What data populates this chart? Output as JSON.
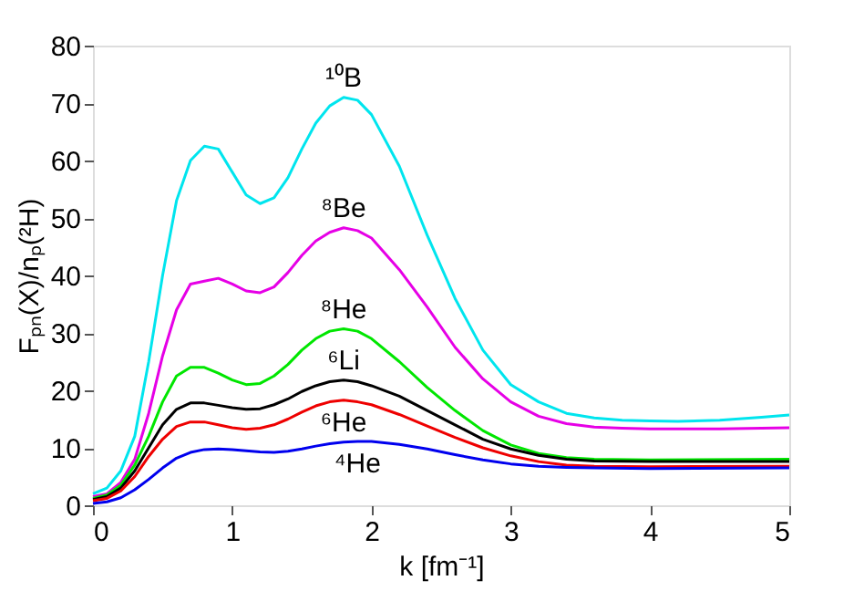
{
  "chart_data": {
    "type": "line",
    "xlabel": "k [fm⁻¹]",
    "ylabel": "Fₚₙ(X)/nₚ(²H)",
    "xlim": [
      0,
      5
    ],
    "xticks": [
      0,
      1,
      2,
      3,
      4,
      5
    ],
    "ylim": [
      0,
      80
    ],
    "yticks": [
      0,
      10,
      20,
      30,
      40,
      50,
      60,
      70,
      80
    ],
    "grid": false,
    "legend": false,
    "marker": "none",
    "line_style": "solid",
    "series": [
      {
        "color": "#00e5ee",
        "x": [
          0,
          0.1,
          0.2,
          0.3,
          0.4,
          0.5,
          0.6,
          0.7,
          0.8,
          0.9,
          1.0,
          1.1,
          1.2,
          1.3,
          1.4,
          1.5,
          1.6,
          1.7,
          1.8,
          1.9,
          2.0,
          2.2,
          2.4,
          2.6,
          2.8,
          3.0,
          3.2,
          3.4,
          3.6,
          3.8,
          4.0,
          4.2,
          4.5,
          4.8,
          5.0
        ],
        "values": [
          2,
          3,
          6,
          12,
          25,
          40,
          53,
          60,
          62.5,
          62,
          58,
          54,
          52.5,
          53.5,
          57,
          62,
          66.5,
          69.5,
          71,
          70.5,
          68,
          59,
          47,
          36,
          27,
          21,
          18,
          16,
          15.2,
          14.8,
          14.7,
          14.6,
          14.8,
          15.3,
          15.7
        ]
      },
      {
        "color": "#e600e6",
        "x": [
          0,
          0.1,
          0.2,
          0.3,
          0.4,
          0.5,
          0.6,
          0.7,
          0.8,
          0.9,
          1.0,
          1.1,
          1.2,
          1.3,
          1.4,
          1.5,
          1.6,
          1.7,
          1.8,
          1.9,
          2.0,
          2.2,
          2.4,
          2.6,
          2.8,
          3.0,
          3.2,
          3.4,
          3.6,
          3.8,
          4.0,
          4.5,
          5.0
        ],
        "values": [
          1.5,
          2,
          4,
          8,
          16,
          26,
          34,
          38.5,
          39,
          39.5,
          38.5,
          37.3,
          37,
          38,
          40.5,
          43.5,
          46,
          47.5,
          48.3,
          47.8,
          46.5,
          41,
          34.5,
          27.5,
          22,
          18,
          15.5,
          14.2,
          13.6,
          13.4,
          13.3,
          13.3,
          13.5
        ]
      },
      {
        "color": "#00e600",
        "x": [
          0,
          0.1,
          0.2,
          0.3,
          0.4,
          0.5,
          0.6,
          0.7,
          0.8,
          0.9,
          1.0,
          1.1,
          1.2,
          1.3,
          1.4,
          1.5,
          1.6,
          1.7,
          1.8,
          1.9,
          2.0,
          2.2,
          2.4,
          2.6,
          2.8,
          3.0,
          3.2,
          3.4,
          3.6,
          4.0,
          5.0
        ],
        "values": [
          1.2,
          1.8,
          3.5,
          7,
          12,
          18,
          22.5,
          24,
          24,
          23,
          21.8,
          21,
          21.2,
          22.5,
          24.5,
          27,
          29,
          30.3,
          30.7,
          30.3,
          29,
          25,
          20.5,
          16.5,
          13,
          10.5,
          9,
          8.3,
          8,
          7.9,
          8
        ]
      },
      {
        "color": "#000000",
        "x": [
          0,
          0.1,
          0.2,
          0.3,
          0.4,
          0.5,
          0.6,
          0.7,
          0.8,
          0.9,
          1.0,
          1.1,
          1.2,
          1.3,
          1.4,
          1.5,
          1.6,
          1.7,
          1.8,
          1.9,
          2.0,
          2.2,
          2.4,
          2.6,
          2.8,
          3.0,
          3.2,
          3.4,
          3.6,
          4.0,
          5.0
        ],
        "values": [
          1,
          1.5,
          3,
          6,
          10,
          14,
          16.7,
          17.8,
          17.8,
          17.4,
          17,
          16.7,
          16.8,
          17.5,
          18.5,
          19.8,
          20.8,
          21.5,
          21.8,
          21.5,
          20.8,
          19,
          16.5,
          14,
          11.5,
          9.8,
          8.7,
          8,
          7.7,
          7.6,
          7.6
        ]
      },
      {
        "color": "#ee0000",
        "x": [
          0,
          0.1,
          0.2,
          0.3,
          0.4,
          0.5,
          0.6,
          0.7,
          0.8,
          0.9,
          1.0,
          1.1,
          1.2,
          1.3,
          1.4,
          1.5,
          1.6,
          1.7,
          1.8,
          1.9,
          2.0,
          2.2,
          2.4,
          2.6,
          2.8,
          3.0,
          3.2,
          3.4,
          3.6,
          4.0,
          5.0
        ],
        "values": [
          0.8,
          1.2,
          2.5,
          5,
          8.5,
          11.5,
          13.7,
          14.5,
          14.5,
          14,
          13.5,
          13.2,
          13.4,
          14,
          15,
          16.2,
          17.3,
          18,
          18.3,
          18,
          17.5,
          15.8,
          13.8,
          11.8,
          10,
          8.6,
          7.6,
          7,
          6.8,
          6.7,
          6.8
        ]
      },
      {
        "color": "#0000ee",
        "x": [
          0,
          0.1,
          0.2,
          0.3,
          0.4,
          0.5,
          0.6,
          0.7,
          0.8,
          0.9,
          1.0,
          1.1,
          1.2,
          1.3,
          1.4,
          1.5,
          1.6,
          1.7,
          1.8,
          1.9,
          2.0,
          2.2,
          2.4,
          2.6,
          2.8,
          3.0,
          3.2,
          3.4,
          3.6,
          4.0,
          5.0
        ],
        "values": [
          0.3,
          0.6,
          1.3,
          2.7,
          4.5,
          6.5,
          8.2,
          9.2,
          9.7,
          9.8,
          9.7,
          9.5,
          9.3,
          9.2,
          9.4,
          9.8,
          10.3,
          10.7,
          11,
          11.1,
          11.1,
          10.6,
          9.8,
          8.8,
          7.9,
          7.2,
          6.8,
          6.6,
          6.5,
          6.4,
          6.5
        ]
      }
    ],
    "annotations": [
      "¹⁰B",
      "⁸Be",
      "⁸He",
      "⁶Li",
      "⁶He",
      "⁴He"
    ]
  }
}
